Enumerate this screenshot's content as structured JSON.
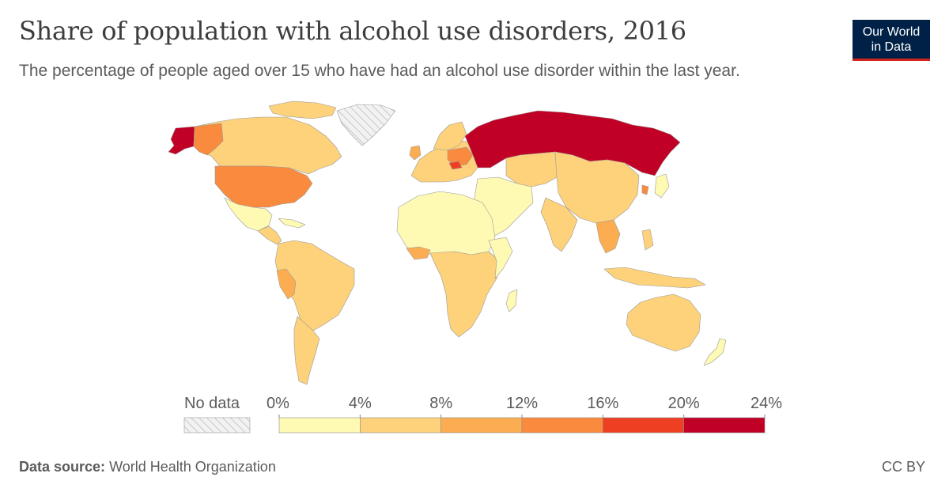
{
  "header": {
    "title": "Share of population with alcohol use disorders, 2016",
    "subtitle": "The percentage of people aged over 15 who have had an alcohol use disorder within the last year."
  },
  "logo": {
    "line1": "Our World",
    "line2": "in Data"
  },
  "footer": {
    "source_label": "Data source:",
    "source_value": "World Health Organization",
    "license": "CC BY"
  },
  "legend": {
    "no_data_label": "No data",
    "ticks": [
      "0%",
      "4%",
      "8%",
      "12%",
      "16%",
      "20%",
      "24%"
    ],
    "bins": [
      {
        "from": 0,
        "to": 4,
        "color": "#fefab4"
      },
      {
        "from": 4,
        "to": 8,
        "color": "#fdd27a"
      },
      {
        "from": 8,
        "to": 12,
        "color": "#fcad51"
      },
      {
        "from": 12,
        "to": 16,
        "color": "#f98a3e"
      },
      {
        "from": 16,
        "to": 20,
        "color": "#ef3f23"
      },
      {
        "from": 20,
        "to": 24,
        "color": "#c00025"
      }
    ]
  },
  "colors": {
    "no_data": "#ececec",
    "hatch": "#c8c8c8",
    "border": "#9a9a9a"
  }
}
